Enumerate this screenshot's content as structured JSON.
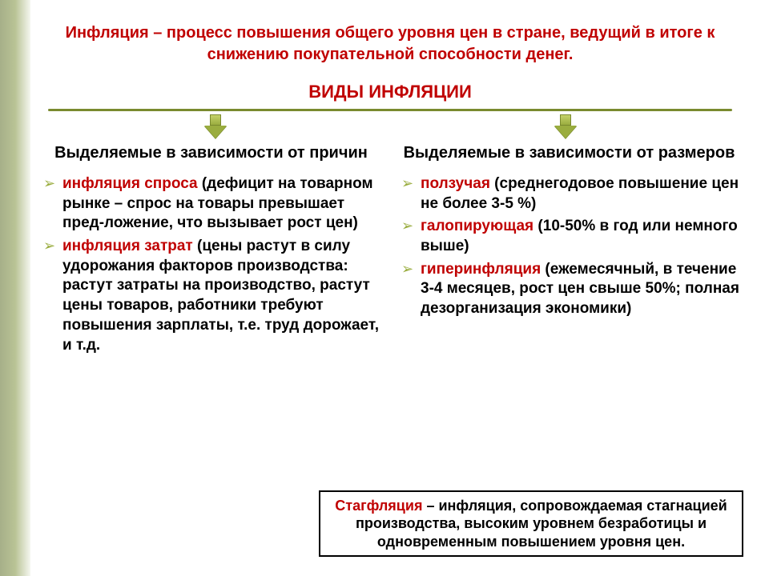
{
  "definition": {
    "term": "Инфляция",
    "text": " – процесс повышения общего уровня цен в стране, ведущий в итоге к снижению покупательной способности денег."
  },
  "section_title": "ВИДЫ ИНФЛЯЦИИ",
  "colors": {
    "accent_red": "#c00000",
    "accent_olive": "#9aad3f",
    "line_olive": "#7a8a2e",
    "bg_side": "#6b7a3a"
  },
  "left": {
    "heading": "Выделяемые в зависимости от причин",
    "items": [
      {
        "term": "инфляция спроса",
        "rest": " (дефицит на товарном рынке – спрос на товары превышает пред-ложение, что вызывает рост цен)"
      },
      {
        "term": "инфляция затрат",
        "rest": " (цены растут в силу удорожания факторов производства: растут затраты на производство, растут цены товаров, работники требуют повышения зарплаты, т.е. труд дорожает, и т.д."
      }
    ]
  },
  "right": {
    "heading": "Выделяемые в зависимости от размеров",
    "items": [
      {
        "term": "ползучая",
        "rest": " (среднегодовое повышение цен не более 3-5 %)"
      },
      {
        "term": "галопирующая",
        "rest": " (10-50% в год или немного выше)"
      },
      {
        "term": "гиперинфляция",
        "rest": " (ежемесячный, в течение 3-4 месяцев, рост цен свыше 50%; полная дезорганизация экономики)"
      }
    ]
  },
  "callout": {
    "term": "Стагфляция",
    "text": " – инфляция, сопровождаемая стагнацией производства, высоким уровнем безработицы и одновременным повышением уровня цен."
  }
}
